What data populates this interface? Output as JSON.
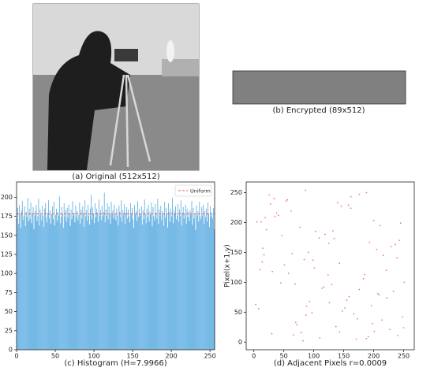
{
  "images": [
    {
      "caption": "(a) Original (512x512)"
    },
    {
      "caption": "(b) Encrypted (89x512)"
    }
  ],
  "chart_data": [
    {
      "type": "histogram",
      "x_label": "(c) Histogram (H=7.9966)",
      "color": "#5dade2",
      "bins": [
        0,
        1,
        2,
        3,
        4,
        5,
        6,
        7,
        8,
        9,
        10,
        11,
        12,
        13,
        14,
        15,
        16,
        17,
        18,
        19,
        20,
        21,
        22,
        23,
        24,
        25,
        26,
        27,
        28,
        29,
        30,
        31,
        32,
        33,
        34,
        35,
        36,
        37,
        38,
        39,
        40,
        41,
        42,
        43,
        44,
        45,
        46,
        47,
        48,
        49,
        50,
        51,
        52,
        53,
        54,
        55,
        56,
        57,
        58,
        59,
        60,
        61,
        62,
        63,
        64,
        65,
        66,
        67,
        68,
        69,
        70,
        71,
        72,
        73,
        74,
        75,
        76,
        77,
        78,
        79,
        80,
        81,
        82,
        83,
        84,
        85,
        86,
        87,
        88,
        89,
        90,
        91,
        92,
        93,
        94,
        95,
        96,
        97,
        98,
        99,
        100,
        101,
        102,
        103,
        104,
        105,
        106,
        107,
        108,
        109,
        110,
        111,
        112,
        113,
        114,
        115,
        116,
        117,
        118,
        119,
        120,
        121,
        122,
        123,
        124,
        125,
        126,
        127,
        128,
        129,
        130,
        131,
        132,
        133,
        134,
        135,
        136,
        137,
        138,
        139,
        140,
        141,
        142,
        143,
        144,
        145,
        146,
        147,
        148,
        149,
        150,
        151,
        152,
        153,
        154,
        155,
        156,
        157,
        158,
        159,
        160,
        161,
        162,
        163,
        164,
        165,
        166,
        167,
        168,
        169,
        170,
        171,
        172,
        173,
        174,
        175,
        176,
        177,
        178,
        179,
        180,
        181,
        182,
        183,
        184,
        185,
        186,
        187,
        188,
        189,
        190,
        191,
        192,
        193,
        194,
        195,
        196,
        197,
        198,
        199,
        200,
        201,
        202,
        203,
        204,
        205,
        206,
        207,
        208,
        209,
        210,
        211,
        212,
        213,
        214,
        215,
        216,
        217,
        218,
        219,
        220,
        221,
        222,
        223,
        224,
        225,
        226,
        227,
        228,
        229,
        230,
        231,
        232,
        233,
        234,
        235,
        236,
        237,
        238,
        239,
        240,
        241,
        242,
        243,
        244,
        245,
        246,
        247,
        248,
        249,
        250,
        251,
        252,
        253,
        254,
        255,
        256
      ],
      "values": [
        172,
        186,
        165,
        190,
        178,
        160,
        183,
        195,
        170,
        176,
        188,
        162,
        181,
        174,
        199,
        168,
        185,
        171,
        193,
        166,
        179,
        187,
        158,
        176,
        182,
        190,
        169,
        175,
        198,
        163,
        184,
        177,
        170,
        189,
        176,
        161,
        185,
        192,
        174,
        167,
        180,
        196,
        172,
        183,
        165,
        178,
        188,
        171,
        194,
        163,
        177,
        185,
        169,
        181,
        176,
        201,
        166,
        174,
        187,
        179,
        160,
        192,
        175,
        183,
        168,
        186,
        173,
        190,
        178,
        162,
        184,
        171,
        195,
        176,
        180,
        167,
        189,
        174,
        182,
        170,
        177,
        193,
        165,
        184,
        172,
        188,
        179,
        161,
        196,
        175,
        183,
        169,
        190,
        176,
        164,
        185,
        203,
        171,
        187,
        178,
        166,
        192,
        174,
        185,
        180,
        168,
        197,
        176,
        183,
        170,
        189,
        175,
        181,
        206,
        167,
        184,
        176,
        192,
        171,
        188,
        179,
        165,
        194,
        177,
        183,
        172,
        190,
        178,
        170,
        185,
        176,
        163,
        189,
        181,
        174,
        196,
        168,
        183,
        177,
        191,
        165,
        180,
        187,
        172,
        184,
        175,
        167,
        192,
        179,
        186,
        171,
        160,
        190,
        177,
        182,
        169,
        195,
        174,
        185,
        178,
        176,
        188,
        164,
        183,
        171,
        197,
        179,
        166,
        185,
        174,
        190,
        168,
        181,
        177,
        193,
        162,
        187,
        175,
        169,
        191,
        180,
        172,
        198,
        165,
        184,
        176,
        189,
        170,
        182,
        178,
        163,
        194,
        173,
        186,
        177,
        160,
        192,
        181,
        168,
        185,
        175,
        199,
        166,
        183,
        179,
        188,
        171,
        176,
        191,
        168,
        184,
        175,
        196,
        163,
        180,
        187,
        172,
        178,
        190,
        165,
        185,
        174,
        181,
        169,
        183,
        177,
        195,
        164,
        186,
        172,
        179,
        157,
        189,
        176,
        182,
        168,
        194,
        175,
        171,
        187,
        176,
        190,
        165,
        182,
        174,
        185,
        168,
        193,
        179,
        161,
        188,
        175,
        180,
        172,
        186,
        158
      ],
      "reference_line": {
        "name": "Uniform",
        "value": 178,
        "color": "#e8604c"
      },
      "legend": "upper right",
      "xlim": [
        0,
        256
      ],
      "ylim": [
        0,
        220
      ],
      "xticks": [
        0,
        50,
        100,
        150,
        200,
        250
      ],
      "yticks": [
        0,
        25,
        50,
        75,
        100,
        125,
        150,
        175,
        200
      ]
    },
    {
      "type": "scatter",
      "x_label": "(d) Adjacent Pixels r=0.0009",
      "y_label": "Pixel(x+1,y)",
      "color": "#e06060",
      "x": [
        12,
        87,
        143,
        201,
        34,
        176,
        229,
        58,
        110,
        245,
        3,
        162,
        91,
        214,
        47,
        130,
        188,
        72,
        239,
        19,
        155,
        103,
        66,
        221,
        140,
        8,
        193,
        117,
        250,
        41,
        84,
        171,
        26,
        207,
        134,
        97,
        62,
        183,
        240,
        15,
        126,
        77,
        198,
        51,
        162,
        233,
        109,
        30,
        146,
        88,
        216,
        5,
        173,
        124,
        54,
        191,
        236,
        69,
        148,
        21,
        101,
        227,
        38,
        159,
        205,
        82,
        119,
        14,
        248,
        176,
        45,
        93,
        211,
        137,
        64,
        185,
        28,
        152,
        243,
        114,
        79,
        200,
        10,
        167,
        132,
        56,
        222,
        99,
        188,
        35,
        251,
        125,
        70,
        158,
        17,
        209,
        86,
        143,
        31,
        196
      ],
      "values": [
        201,
        45,
        132,
        18,
        240,
        88,
        160,
        115,
        7,
        199,
        63,
        224,
        150,
        37,
        178,
        96,
        250,
        29,
        141,
        208,
        70,
        185,
        12,
        120,
        233,
        56,
        167,
        92,
        24,
        212,
        138,
        5,
        246,
        81,
        173,
        49,
        219,
        106,
        11,
        157,
        66,
        192,
        31,
        129,
        243,
        85,
        174,
        14,
        227,
        60,
        145,
        201,
        39,
        112,
        236,
        9,
        163,
        97,
        52,
        188,
        124,
        21,
        216,
        76,
        155,
        2,
        180,
        134,
        42,
        247,
        99,
        68,
        195,
        26,
        148,
        113,
        231,
        57,
        170,
        90,
        16,
        203,
        121,
        47,
        186,
        238,
        74,
        137,
        6,
        210,
        100,
        165,
        33,
        229,
        146,
        79,
        254,
        17,
        118,
        61
      ],
      "xlim": [
        -12.75,
        267.75
      ],
      "ylim": [
        -12.75,
        267.75
      ],
      "xticks": [
        0,
        50,
        100,
        150,
        200,
        250
      ],
      "yticks": [
        0,
        50,
        100,
        150,
        200,
        250
      ]
    }
  ]
}
